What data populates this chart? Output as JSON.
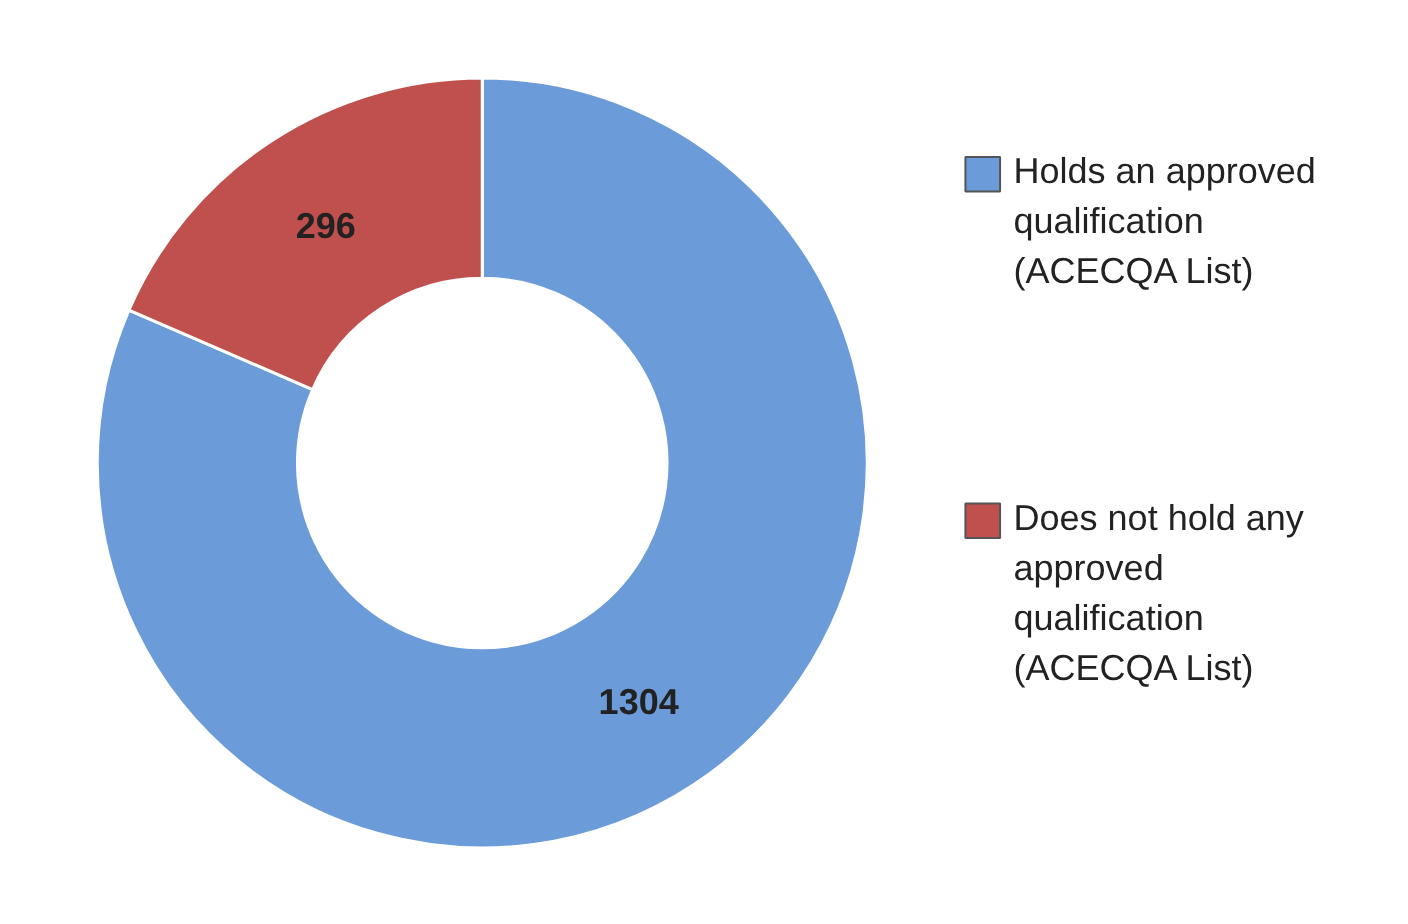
{
  "chart_data": {
    "type": "donut",
    "categories": [
      "Holds an approved qualification (ACECQA List)",
      "Does not hold any approved qualification (ACECQA List)"
    ],
    "values": [
      1304,
      296
    ],
    "colors": [
      "#6b9bd8",
      "#c0504d"
    ],
    "data_labels": true,
    "legend": "right"
  }
}
